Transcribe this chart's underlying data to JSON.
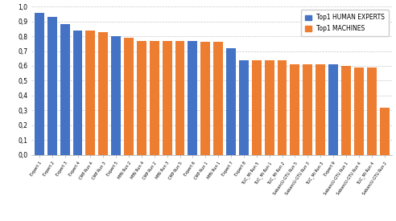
{
  "bars": [
    {
      "label": "Expert 1",
      "value": 0.96,
      "color": "#4472C4"
    },
    {
      "label": "Expert 2",
      "value": 0.93,
      "color": "#4472C4"
    },
    {
      "label": "Expert 3",
      "value": 0.88,
      "color": "#4472C4"
    },
    {
      "label": "Expert 4",
      "value": 0.84,
      "color": "#4472C4"
    },
    {
      "label": "CMP Run 4",
      "value": 0.84,
      "color": "#ED7D31"
    },
    {
      "label": "CMP Run 3",
      "value": 0.83,
      "color": "#ED7D31"
    },
    {
      "label": "Expert 5",
      "value": 0.8,
      "color": "#4472C4"
    },
    {
      "label": "MfN Run 2",
      "value": 0.79,
      "color": "#ED7D31"
    },
    {
      "label": "MfN Run 4",
      "value": 0.77,
      "color": "#ED7D31"
    },
    {
      "label": "CMP Run 2",
      "value": 0.77,
      "color": "#ED7D31"
    },
    {
      "label": "MfN Run 3",
      "value": 0.77,
      "color": "#ED7D31"
    },
    {
      "label": "CMP Run 5",
      "value": 0.77,
      "color": "#ED7D31"
    },
    {
      "label": "Expert 6",
      "value": 0.77,
      "color": "#4472C4"
    },
    {
      "label": "CMP Run 1",
      "value": 0.76,
      "color": "#ED7D31"
    },
    {
      "label": "MfN Run 1",
      "value": 0.76,
      "color": "#ED7D31"
    },
    {
      "label": "Expert 7",
      "value": 0.72,
      "color": "#4472C4"
    },
    {
      "label": "Expert 8",
      "value": 0.64,
      "color": "#4472C4"
    },
    {
      "label": "TUC_Mi Run 5",
      "value": 0.64,
      "color": "#ED7D31"
    },
    {
      "label": "TUC_Mi Run 1",
      "value": 0.64,
      "color": "#ED7D31"
    },
    {
      "label": "TUC_Mi Run 2",
      "value": 0.64,
      "color": "#ED7D31"
    },
    {
      "label": "SabancU-GTU Run 5",
      "value": 0.61,
      "color": "#ED7D31"
    },
    {
      "label": "SabancU-GTU Run 3",
      "value": 0.61,
      "color": "#ED7D31"
    },
    {
      "label": "TUC_Mi Run 3",
      "value": 0.61,
      "color": "#ED7D31"
    },
    {
      "label": "Expert 9",
      "value": 0.61,
      "color": "#4472C4"
    },
    {
      "label": "SabancU-GTU Run 1",
      "value": 0.6,
      "color": "#ED7D31"
    },
    {
      "label": "SabancU-GTU Run 4",
      "value": 0.59,
      "color": "#ED7D31"
    },
    {
      "label": "TUC_Mi Run 4",
      "value": 0.59,
      "color": "#ED7D31"
    },
    {
      "label": "SabancU-GTU Run 2",
      "value": 0.32,
      "color": "#ED7D31"
    }
  ],
  "ylim": [
    0.0,
    1.0
  ],
  "yticks": [
    0.0,
    0.1,
    0.2,
    0.3,
    0.4,
    0.5,
    0.6,
    0.7,
    0.8,
    0.9,
    1.0
  ],
  "ytick_labels": [
    "0,0",
    "0,1",
    "0,2",
    "0,3",
    "0,4",
    "0,5",
    "0,6",
    "0,7",
    "0,8",
    "0,9",
    "1,0"
  ],
  "legend_human": "Top1 HUMAN EXPERTS",
  "legend_machine": "Top1 MACHINES",
  "human_color": "#4472C4",
  "machine_color": "#ED7D31",
  "background_color": "#FFFFFF",
  "grid_color": "#C8C8C8",
  "bar_width": 0.75
}
